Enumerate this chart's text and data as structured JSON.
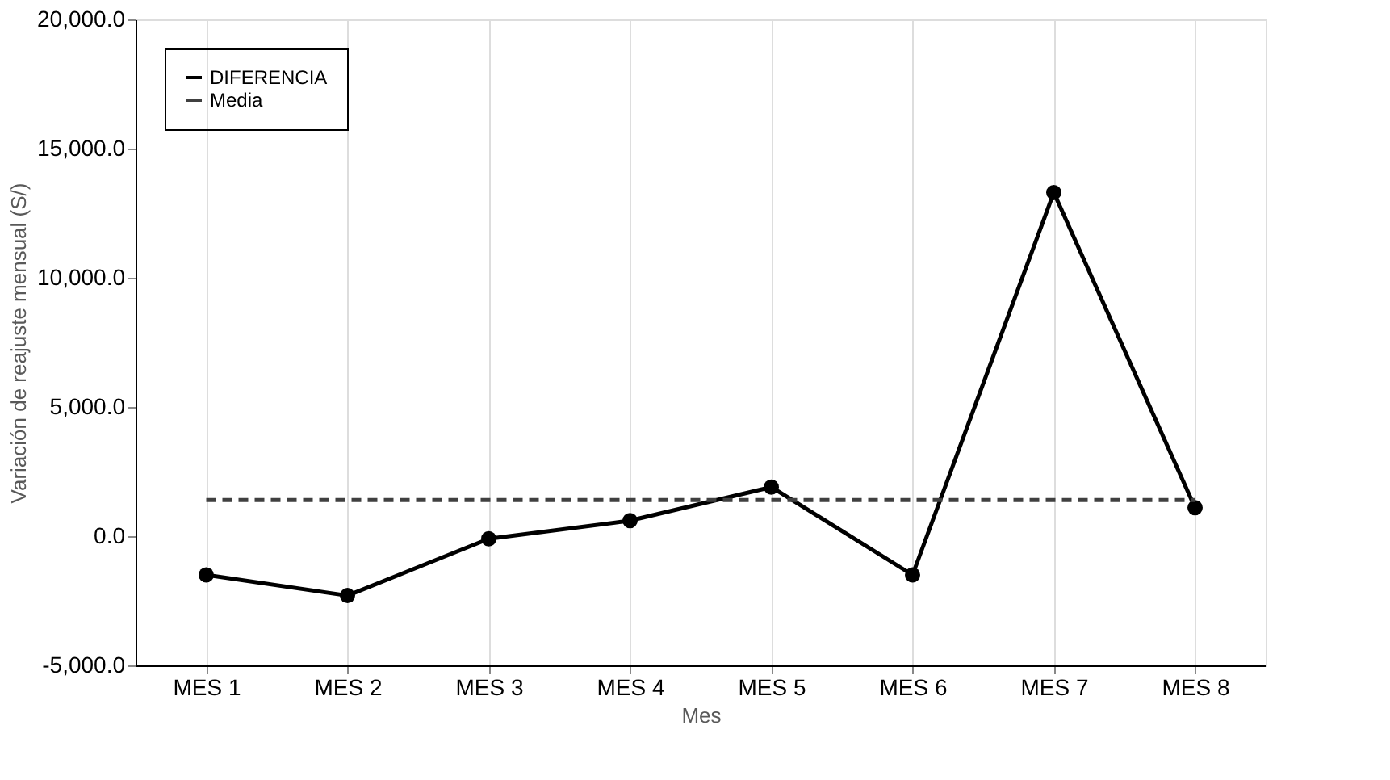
{
  "chart_data": {
    "type": "line",
    "xlabel": "Mes",
    "ylabel": "Variación de reajuste mensual (S/)",
    "categories": [
      "MES 1",
      "MES 2",
      "MES 3",
      "MES 4",
      "MES 5",
      "MES 6",
      "MES 7",
      "MES 8"
    ],
    "series": [
      {
        "name": "DIFERENCIA",
        "color": "#000000",
        "marker": "circle",
        "line_style": "solid",
        "values": [
          -1500,
          -2300,
          -100,
          600,
          1900,
          -1500,
          13300,
          1100
        ]
      },
      {
        "name": "Media",
        "color": "#404040",
        "marker": "none",
        "line_style": "dashed",
        "values": [
          1400,
          1400,
          1400,
          1400,
          1400,
          1400,
          1400,
          1400
        ]
      }
    ],
    "ylim": [
      -5000,
      20000
    ],
    "yticks": [
      {
        "value": -5000,
        "label": "-5,000.0"
      },
      {
        "value": 0,
        "label": "0.0"
      },
      {
        "value": 5000,
        "label": "5,000.0"
      },
      {
        "value": 10000,
        "label": "10,000.0"
      },
      {
        "value": 15000,
        "label": "15,000.0"
      },
      {
        "value": 20000,
        "label": "20,000.0"
      }
    ],
    "grid": "x",
    "legend": "top left"
  }
}
